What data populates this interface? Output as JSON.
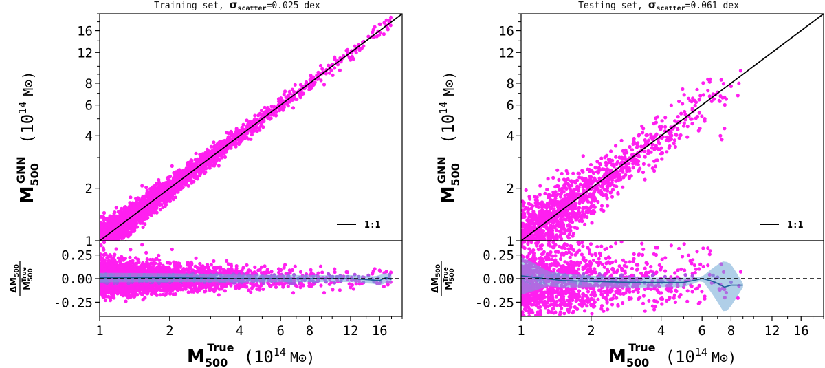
{
  "chart_data": [
    {
      "type": "scatter",
      "panel": "left",
      "title_prefix": "Training set, ",
      "title_sigma": "σ",
      "title_sigma_sub": "scatter",
      "title_value": "=0.025 dex",
      "xlabel_main": "M",
      "xlabel_sub": "500",
      "xlabel_sup": "True",
      "xlabel_units": "(10",
      "xlabel_units_exp": "14",
      "xlabel_units_tail": "M⊙)",
      "ylabel_main": "M",
      "ylabel_sub": "500",
      "ylabel_sup": "GNN",
      "ylabel_units": "(10",
      "ylabel_units_exp": "14",
      "ylabel_units_tail": "M⊙)",
      "resid_ylabel_num": "ΔM",
      "resid_ylabel_num_sub": "500",
      "resid_ylabel_den": "M",
      "resid_ylabel_den_sub": "500",
      "resid_ylabel_den_sup": "True",
      "xscale": "log",
      "xlim": [
        1,
        20
      ],
      "ylim": [
        1,
        20
      ],
      "xticks": [
        1,
        2,
        4,
        6,
        8,
        12,
        16
      ],
      "xtick_labels": [
        "1",
        "2",
        "4",
        "6",
        "8",
        "12",
        "16"
      ],
      "yticks": [
        1,
        2,
        4,
        6,
        8,
        12,
        16
      ],
      "ytick_labels": [
        "1",
        "2",
        "4",
        "6",
        "8",
        "12",
        "16"
      ],
      "resid_ylim": [
        -0.4,
        0.4
      ],
      "resid_yticks": [
        0.25,
        0.0,
        -0.25
      ],
      "resid_ytick_labels": [
        "0.25",
        "0.00",
        "-0.25"
      ],
      "legend_label": "1:1",
      "legend_position": "lower-right",
      "point_color": "#ff1ff0",
      "band_color": "#6fa8d6",
      "line_color": "#1f5f99",
      "scatter_sigma_dex": 0.025,
      "n_points": 3200,
      "x_max_data": 18,
      "resid_median": [
        [
          1,
          0.01
        ],
        [
          2,
          0.01
        ],
        [
          4,
          0.0
        ],
        [
          8,
          0.0
        ],
        [
          12,
          0.0
        ],
        [
          14,
          -0.01
        ],
        [
          16,
          -0.02
        ],
        [
          17,
          0.01
        ],
        [
          18,
          -0.01
        ]
      ],
      "resid_band_halfwidth": [
        [
          1,
          0.05
        ],
        [
          4,
          0.04
        ],
        [
          10,
          0.035
        ],
        [
          15,
          0.04
        ],
        [
          16.5,
          0.06
        ],
        [
          18,
          0.04
        ]
      ]
    },
    {
      "type": "scatter",
      "panel": "right",
      "title_prefix": "Testing set, ",
      "title_sigma": "σ",
      "title_sigma_sub": "scatter",
      "title_value": "=0.061 dex",
      "xlabel_main": "M",
      "xlabel_sub": "500",
      "xlabel_sup": "True",
      "xlabel_units": "(10",
      "xlabel_units_exp": "14",
      "xlabel_units_tail": "M⊙)",
      "ylabel_main": "M",
      "ylabel_sub": "500",
      "ylabel_sup": "GNN",
      "ylabel_units": "(10",
      "ylabel_units_exp": "14",
      "ylabel_units_tail": "M⊙)",
      "resid_ylabel_num": "ΔM",
      "resid_ylabel_num_sub": "500",
      "resid_ylabel_den": "M",
      "resid_ylabel_den_sub": "500",
      "resid_ylabel_den_sup": "True",
      "xscale": "log",
      "xlim": [
        1,
        20
      ],
      "ylim": [
        1,
        20
      ],
      "xticks": [
        1,
        2,
        4,
        6,
        8,
        12,
        16
      ],
      "xtick_labels": [
        "1",
        "2",
        "4",
        "6",
        "8",
        "12",
        "16"
      ],
      "yticks": [
        1,
        2,
        4,
        6,
        8,
        12,
        16
      ],
      "ytick_labels": [
        "1",
        "2",
        "4",
        "6",
        "8",
        "12",
        "16"
      ],
      "resid_ylim": [
        -0.4,
        0.4
      ],
      "resid_yticks": [
        0.25,
        0.0,
        -0.25
      ],
      "resid_ytick_labels": [
        "0.25",
        "0.00",
        "-0.25"
      ],
      "legend_label": "1:1",
      "legend_position": "lower-right",
      "point_color": "#ff1ff0",
      "band_color": "#6fa8d6",
      "line_color": "#1f5f99",
      "scatter_sigma_dex": 0.061,
      "n_points": 1400,
      "x_max_data": 9,
      "outliers": [
        [
          7.2,
          4.0
        ],
        [
          7.5,
          4.4
        ],
        [
          7.3,
          3.8
        ],
        [
          1.05,
          1.95
        ],
        [
          6.6,
          6.3
        ],
        [
          7.0,
          7.1
        ]
      ],
      "resid_median": [
        [
          1,
          0.03
        ],
        [
          1.5,
          -0.02
        ],
        [
          2,
          -0.03
        ],
        [
          3,
          -0.04
        ],
        [
          4,
          -0.04
        ],
        [
          5,
          -0.04
        ],
        [
          5.5,
          -0.02
        ],
        [
          6,
          0.0
        ],
        [
          6.5,
          -0.02
        ],
        [
          7,
          -0.05
        ],
        [
          7.5,
          -0.09
        ],
        [
          8,
          -0.07
        ],
        [
          9,
          -0.07
        ]
      ],
      "resid_band_halfwidth": [
        [
          1,
          0.2
        ],
        [
          1.3,
          0.08
        ],
        [
          2,
          0.06
        ],
        [
          4,
          0.05
        ],
        [
          5,
          0.05
        ],
        [
          6,
          0.02
        ],
        [
          7,
          0.2
        ],
        [
          7.5,
          0.28
        ],
        [
          8,
          0.22
        ],
        [
          9,
          0.02
        ]
      ]
    }
  ]
}
